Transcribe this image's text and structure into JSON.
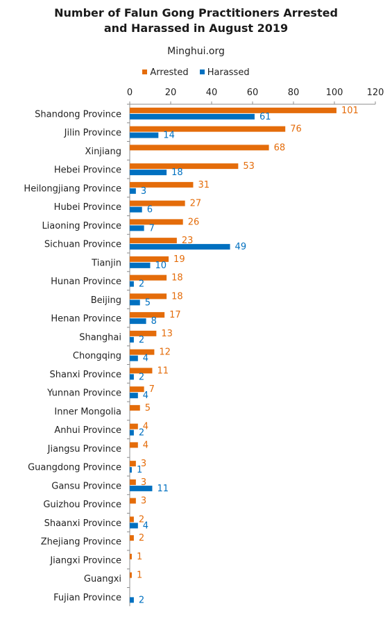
{
  "chart_data": {
    "type": "bar",
    "orientation": "horizontal",
    "title_lines": [
      "Number of Falun Gong Practitioners Arrested",
      "and Harassed in August 2019"
    ],
    "subtitle": "Minghui.org",
    "xlim": [
      0,
      120
    ],
    "xticks": [
      "0",
      "20",
      "40",
      "60",
      "80",
      "100",
      "120"
    ],
    "legend_position": "top",
    "categories": [
      "Shandong Province",
      "Jilin Province",
      "Xinjiang",
      "Hebei Province",
      "Heilongjiang Province",
      "Hubei Province",
      "Liaoning Province",
      "Sichuan Province",
      "Tianjin",
      "Hunan Province",
      "Beijing",
      "Henan Province",
      "Shanghai",
      "Chongqing",
      "Shanxi Province",
      "Yunnan Province",
      "Inner Mongolia",
      "Anhui Province",
      "Jiangsu Province",
      "Guangdong Province",
      "Gansu Province",
      "Guizhou Province",
      "Shaanxi Province",
      "Zhejiang Province",
      "Jiangxi Province",
      "Guangxi",
      "Fujian Province"
    ],
    "series": [
      {
        "name": "Arrested",
        "color": "#E46C0A",
        "values": [
          101,
          76,
          68,
          53,
          31,
          27,
          26,
          23,
          19,
          18,
          18,
          17,
          13,
          12,
          11,
          7,
          5,
          4,
          4,
          3,
          3,
          3,
          2,
          2,
          1,
          1,
          null
        ]
      },
      {
        "name": "Harassed",
        "color": "#0070C0",
        "values": [
          61,
          14,
          null,
          18,
          3,
          6,
          7,
          49,
          10,
          2,
          5,
          8,
          2,
          4,
          2,
          4,
          null,
          2,
          null,
          1,
          11,
          null,
          4,
          null,
          null,
          null,
          2
        ]
      }
    ]
  }
}
